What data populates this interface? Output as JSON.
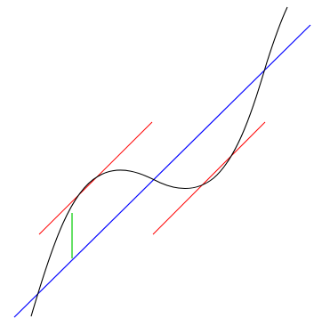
{
  "diagram": {
    "elements": [
      {
        "role": "cubic-curve",
        "color": "#000000"
      },
      {
        "role": "secant-line",
        "color": "#0000ff"
      },
      {
        "role": "tangent-line",
        "color": "#ff0000"
      },
      {
        "role": "tangent-line",
        "color": "#ff0000"
      },
      {
        "role": "vertical-distance-segment",
        "color": "#00cc00"
      }
    ]
  }
}
